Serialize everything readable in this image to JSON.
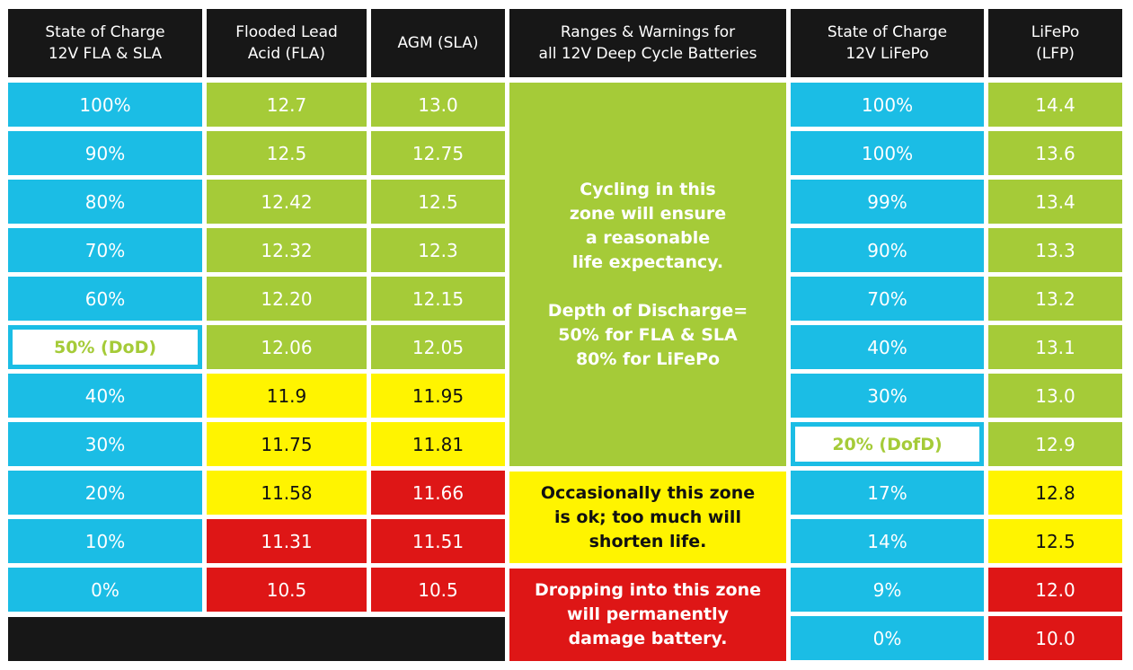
{
  "chart_data": {
    "type": "table",
    "title": "Ranges & Warnings for all 12V Deep Cycle Batteries",
    "colors": {
      "header": "#171717",
      "soc": "#1bbde5",
      "good": "#a5cb38",
      "warn": "#fff400",
      "danger": "#de1616"
    },
    "headers": {
      "soc_fla_sla": "State of Charge\n12V FLA & SLA",
      "fla": "Flooded Lead\nAcid (FLA)",
      "agm": "AGM (SLA)",
      "ranges": "Ranges & Warnings for\nall 12V Deep Cycle Batteries",
      "soc_lifepo": "State of Charge\n12V LiFePo",
      "lfp": "LiFePo\n(LFP)"
    },
    "lead_acid_rows": [
      {
        "soc": "100%",
        "fla": "12.7",
        "agm": "13.0",
        "fla_zone": "good",
        "agm_zone": "good"
      },
      {
        "soc": "90%",
        "fla": "12.5",
        "agm": "12.75",
        "fla_zone": "good",
        "agm_zone": "good"
      },
      {
        "soc": "80%",
        "fla": "12.42",
        "agm": "12.5",
        "fla_zone": "good",
        "agm_zone": "good"
      },
      {
        "soc": "70%",
        "fla": "12.32",
        "agm": "12.3",
        "fla_zone": "good",
        "agm_zone": "good"
      },
      {
        "soc": "60%",
        "fla": "12.20",
        "agm": "12.15",
        "fla_zone": "good",
        "agm_zone": "good"
      },
      {
        "soc": "50% (DoD)",
        "fla": "12.06",
        "agm": "12.05",
        "fla_zone": "good",
        "agm_zone": "good",
        "dod": true
      },
      {
        "soc": "40%",
        "fla": "11.9",
        "agm": "11.95",
        "fla_zone": "warn",
        "agm_zone": "warn"
      },
      {
        "soc": "30%",
        "fla": "11.75",
        "agm": "11.81",
        "fla_zone": "warn",
        "agm_zone": "warn"
      },
      {
        "soc": "20%",
        "fla": "11.58",
        "agm": "11.66",
        "fla_zone": "warn",
        "agm_zone": "danger"
      },
      {
        "soc": "10%",
        "fla": "11.31",
        "agm": "11.51",
        "fla_zone": "danger",
        "agm_zone": "danger"
      },
      {
        "soc": "0%",
        "fla": "10.5",
        "agm": "10.5",
        "fla_zone": "danger",
        "agm_zone": "danger"
      }
    ],
    "lifepo_rows": [
      {
        "soc": "100%",
        "lfp": "14.4",
        "zone": "good"
      },
      {
        "soc": "100%",
        "lfp": "13.6",
        "zone": "good"
      },
      {
        "soc": "99%",
        "lfp": "13.4",
        "zone": "good"
      },
      {
        "soc": "90%",
        "lfp": "13.3",
        "zone": "good"
      },
      {
        "soc": "70%",
        "lfp": "13.2",
        "zone": "good"
      },
      {
        "soc": "40%",
        "lfp": "13.1",
        "zone": "good"
      },
      {
        "soc": "30%",
        "lfp": "13.0",
        "zone": "good"
      },
      {
        "soc": "20% (DofD)",
        "lfp": "12.9",
        "zone": "good",
        "dod": true
      },
      {
        "soc": "17%",
        "lfp": "12.8",
        "zone": "warn"
      },
      {
        "soc": "14%",
        "lfp": "12.5",
        "zone": "warn"
      },
      {
        "soc": "9%",
        "lfp": "12.0",
        "zone": "danger"
      },
      {
        "soc": "0%",
        "lfp": "10.0",
        "zone": "danger"
      }
    ],
    "zones": {
      "good": "Cycling in this\nzone will ensure\na reasonable\nlife expectancy.\n\nDepth of Discharge=\n50% for FLA & SLA\n80% for LiFePo",
      "warn": "Occasionally this zone\nis ok; too much will\nshorten life.",
      "danger": "Dropping into this zone\nwill permanently\ndamage battery."
    }
  }
}
